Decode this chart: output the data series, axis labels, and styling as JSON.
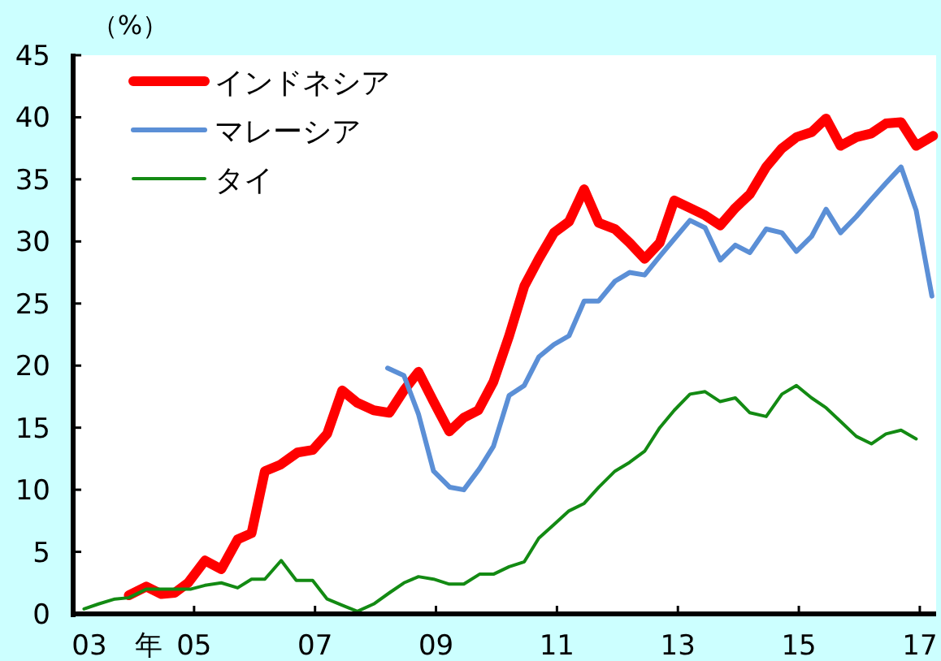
{
  "chart_data": {
    "type": "line",
    "ylabel": "（%）",
    "xlim": [
      2003,
      2017.27
    ],
    "ylim": [
      0,
      45
    ],
    "xlabel": "年",
    "xticks": [
      {
        "value": 2003,
        "label": "03"
      },
      {
        "value": 2005,
        "label": "05"
      },
      {
        "value": 2007,
        "label": "07"
      },
      {
        "value": 2009,
        "label": "09"
      },
      {
        "value": 2011,
        "label": "11"
      },
      {
        "value": 2013,
        "label": "13"
      },
      {
        "value": 2015,
        "label": "15"
      },
      {
        "value": 2017,
        "label": "17"
      }
    ],
    "yticks": [
      0,
      5,
      10,
      15,
      20,
      25,
      30,
      35,
      40,
      45
    ],
    "legend": "top left",
    "grid": false,
    "marker": "none",
    "line_style": "solid",
    "series": [
      {
        "name": "インドネシア",
        "color": "#ff0000",
        "x": [
          2003.92,
          2004.21,
          2004.46,
          2004.68,
          2004.9,
          2005.18,
          2005.45,
          2005.72,
          2005.95,
          2006.17,
          2006.42,
          2006.71,
          2006.96,
          2007.2,
          2007.45,
          2007.7,
          2007.97,
          2008.23,
          2008.47,
          2008.71,
          2008.96,
          2009.22,
          2009.46,
          2009.7,
          2009.95,
          2010.21,
          2010.46,
          2010.7,
          2010.95,
          2011.2,
          2011.45,
          2011.69,
          2011.96,
          2012.2,
          2012.45,
          2012.7,
          2012.94,
          2013.2,
          2013.45,
          2013.7,
          2013.95,
          2014.19,
          2014.46,
          2014.72,
          2014.96,
          2015.21,
          2015.45,
          2015.69,
          2015.95,
          2016.2,
          2016.44,
          2016.69,
          2016.94,
          2017.22
        ],
        "values": [
          1.5,
          2.2,
          1.6,
          1.7,
          2.5,
          4.3,
          3.6,
          6.0,
          6.5,
          11.5,
          12.0,
          13.0,
          13.2,
          14.5,
          18.0,
          17.0,
          16.4,
          16.2,
          18.0,
          19.5,
          17.1,
          14.7,
          15.8,
          16.4,
          18.7,
          22.4,
          26.4,
          28.6,
          30.7,
          31.6,
          34.2,
          31.5,
          31.0,
          29.9,
          28.6,
          29.9,
          33.3,
          32.7,
          32.1,
          31.3,
          32.7,
          33.8,
          36.0,
          37.5,
          38.4,
          38.8,
          39.9,
          37.7,
          38.4,
          38.7,
          39.5,
          39.6,
          37.7,
          38.5
        ]
      },
      {
        "name": "マレーシア",
        "color": "#5b8fd6",
        "x": [
          2008.2,
          2008.47,
          2008.71,
          2008.96,
          2009.23,
          2009.46,
          2009.72,
          2009.95,
          2010.21,
          2010.46,
          2010.7,
          2010.95,
          2011.2,
          2011.45,
          2011.69,
          2011.96,
          2012.2,
          2012.45,
          2012.7,
          2012.94,
          2013.2,
          2013.45,
          2013.7,
          2013.95,
          2014.19,
          2014.46,
          2014.72,
          2014.96,
          2015.21,
          2015.45,
          2015.69,
          2015.95,
          2016.2,
          2016.44,
          2016.69,
          2016.94,
          2017.2
        ],
        "values": [
          19.8,
          19.2,
          16.1,
          11.5,
          10.2,
          10.0,
          11.7,
          13.5,
          17.6,
          18.4,
          20.7,
          21.7,
          22.4,
          25.2,
          25.2,
          26.8,
          27.5,
          27.3,
          28.8,
          30.2,
          31.7,
          31.1,
          28.5,
          29.7,
          29.1,
          31.0,
          30.7,
          29.2,
          30.4,
          32.6,
          30.7,
          32.0,
          33.4,
          34.7,
          36.0,
          32.5,
          25.6
        ]
      },
      {
        "name": "タイ",
        "color": "#138a13",
        "x": [
          2003.18,
          2003.42,
          2003.69,
          2003.92,
          2004.21,
          2004.46,
          2004.68,
          2004.95,
          2005.18,
          2005.45,
          2005.72,
          2005.95,
          2006.17,
          2006.44,
          2006.69,
          2006.96,
          2007.2,
          2007.45,
          2007.7,
          2007.97,
          2008.23,
          2008.47,
          2008.71,
          2008.96,
          2009.22,
          2009.46,
          2009.72,
          2009.95,
          2010.21,
          2010.46,
          2010.7,
          2010.95,
          2011.2,
          2011.45,
          2011.69,
          2011.96,
          2012.2,
          2012.45,
          2012.7,
          2012.94,
          2013.2,
          2013.45,
          2013.7,
          2013.95,
          2014.19,
          2014.46,
          2014.72,
          2014.96,
          2015.21,
          2015.45,
          2015.69,
          2015.95,
          2016.2,
          2016.44,
          2016.69,
          2016.94
        ],
        "values": [
          0.4,
          0.8,
          1.2,
          1.3,
          2.0,
          2.0,
          2.0,
          2.0,
          2.3,
          2.5,
          2.1,
          2.8,
          2.8,
          4.3,
          2.7,
          2.7,
          1.2,
          0.7,
          0.2,
          0.8,
          1.7,
          2.5,
          3.0,
          2.8,
          2.4,
          2.4,
          3.2,
          3.2,
          3.8,
          4.2,
          6.1,
          7.2,
          8.3,
          8.9,
          10.2,
          11.5,
          12.2,
          13.1,
          15.0,
          16.4,
          17.7,
          17.9,
          17.1,
          17.4,
          16.2,
          15.9,
          17.7,
          18.4,
          17.4,
          16.6,
          15.5,
          14.3,
          13.7,
          14.5,
          14.8,
          14.1
        ]
      }
    ]
  }
}
